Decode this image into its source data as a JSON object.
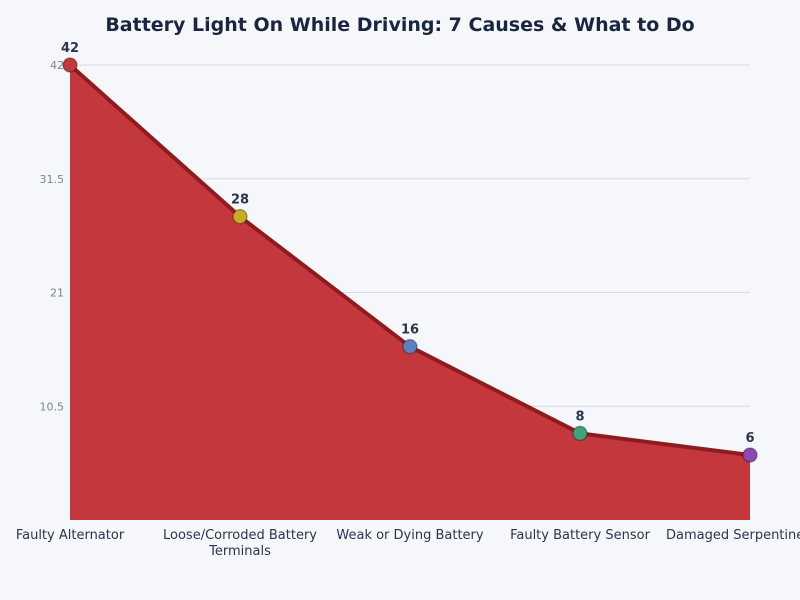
{
  "chart_data": {
    "type": "area",
    "title": "Battery Light On While Driving: 7 Causes & What to Do",
    "categories": [
      "Faulty Alternator",
      "Loose/Corroded Battery Terminals",
      "Weak or Dying Battery",
      "Faulty Battery Sensor",
      "Damaged Serpentine Belt"
    ],
    "values": [
      42,
      28,
      16,
      8,
      6
    ],
    "yticks": [
      10.5,
      21,
      31.5,
      42
    ],
    "ylim": [
      0,
      42
    ],
    "grid": true,
    "xlabel": "",
    "ylabel": "",
    "colors": {
      "fill": "#c4373d",
      "line": "#8e1c1f",
      "markers": [
        "#c4373d",
        "#c9aa22",
        "#5f80bd",
        "#3fa57a",
        "#8e47b5"
      ],
      "grid": "#d8dce3",
      "tick_text": "#7a8494",
      "label_text": "#2a3550"
    }
  }
}
